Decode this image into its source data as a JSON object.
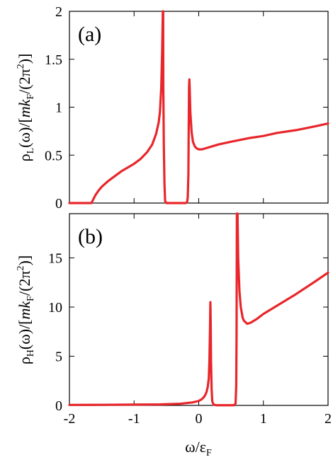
{
  "chart_data": [
    {
      "type": "line",
      "panel_label": "(a)",
      "ylabel": "ρL(ω)/[mkF/(2π2)]",
      "ylabel_parts": {
        "rho": "ρ",
        "sub_rho": "L",
        "mid": "(ω)/[",
        "mk": "mk",
        "sub_k": "F",
        "end1": "/(2π",
        "sup": "2",
        "end2": ")]"
      },
      "xlim": [
        -2,
        2
      ],
      "ylim": [
        0,
        2
      ],
      "xticks": [
        "-2",
        "-1",
        "0",
        "1",
        "2"
      ],
      "yticks": [
        "0",
        "0.5",
        "1",
        "1.5",
        "2"
      ],
      "x_tick_labels_shown": false,
      "color": "#e8262b",
      "series": [
        {
          "x": [
            -2.0,
            -1.7,
            -1.66,
            -1.63,
            -1.6,
            -1.55,
            -1.5,
            -1.4,
            -1.3,
            -1.2,
            -1.1,
            -1.0,
            -0.9,
            -0.8,
            -0.72,
            -0.66,
            -0.62,
            -0.6,
            -0.58,
            -0.565,
            -0.555,
            -0.55,
            -0.548,
            -0.54,
            -0.53,
            -0.52,
            -0.5,
            -0.45,
            -0.3,
            -0.2,
            -0.18,
            -0.17,
            -0.16,
            -0.155,
            -0.15,
            -0.145,
            -0.14,
            -0.13,
            -0.11,
            -0.09,
            -0.06,
            -0.03,
            0.0,
            0.05,
            0.1,
            0.2,
            0.3,
            0.5,
            0.8,
            1.0,
            1.2,
            1.5,
            1.8,
            2.0
          ],
          "y": [
            0.0,
            0.0,
            0.0,
            0.04,
            0.08,
            0.13,
            0.17,
            0.23,
            0.28,
            0.33,
            0.37,
            0.41,
            0.46,
            0.53,
            0.61,
            0.72,
            0.84,
            0.95,
            1.2,
            1.6,
            2.05,
            2.05,
            1.2,
            0.6,
            0.2,
            0.02,
            0.0,
            0.0,
            0.0,
            0.0,
            0.01,
            0.06,
            0.3,
            0.8,
            1.2,
            1.29,
            1.2,
            0.95,
            0.74,
            0.64,
            0.59,
            0.57,
            0.56,
            0.56,
            0.57,
            0.59,
            0.61,
            0.64,
            0.68,
            0.7,
            0.73,
            0.76,
            0.8,
            0.83
          ]
        }
      ]
    },
    {
      "type": "line",
      "panel_label": "(b)",
      "ylabel": "ρH(ω)/[mkF/(2π2)]",
      "ylabel_parts": {
        "rho": "ρ",
        "sub_rho": "H",
        "mid": "(ω)/[",
        "mk": "mk",
        "sub_k": "F",
        "end1": "/(2π",
        "sup": "2",
        "end2": ")]"
      },
      "xlabel": "ω/εF",
      "xlabel_parts": {
        "main": "ω/ε",
        "sub": "F"
      },
      "xlim": [
        -2,
        2
      ],
      "ylim": [
        0,
        19.5
      ],
      "xticks": [
        "-2",
        "-1",
        "0",
        "1",
        "2"
      ],
      "yticks": [
        "0",
        "5",
        "10",
        "15"
      ],
      "color": "#e8262b",
      "series": [
        {
          "x": [
            -2.0,
            -1.5,
            -1.0,
            -0.6,
            -0.3,
            -0.1,
            0.0,
            0.05,
            0.08,
            0.1,
            0.12,
            0.14,
            0.155,
            0.165,
            0.175,
            0.18,
            0.185,
            0.19,
            0.2,
            0.21,
            0.23,
            0.27,
            0.35,
            0.45,
            0.55,
            0.57,
            0.58,
            0.585,
            0.59,
            0.6,
            0.61,
            0.63,
            0.65,
            0.68,
            0.7,
            0.75,
            0.8,
            0.9,
            1.0,
            1.2,
            1.5,
            1.8,
            2.0
          ],
          "y": [
            0.05,
            0.06,
            0.08,
            0.1,
            0.16,
            0.3,
            0.45,
            0.65,
            0.85,
            1.05,
            1.35,
            1.9,
            2.7,
            4.5,
            8.0,
            10.5,
            8.5,
            4.5,
            1.5,
            0.4,
            0.08,
            0.02,
            0.02,
            0.02,
            0.02,
            0.2,
            2.0,
            7.0,
            19.8,
            19.8,
            15.0,
            11.6,
            10.0,
            8.9,
            8.6,
            8.3,
            8.4,
            8.8,
            9.3,
            10.1,
            11.3,
            12.6,
            13.5
          ]
        }
      ]
    }
  ]
}
